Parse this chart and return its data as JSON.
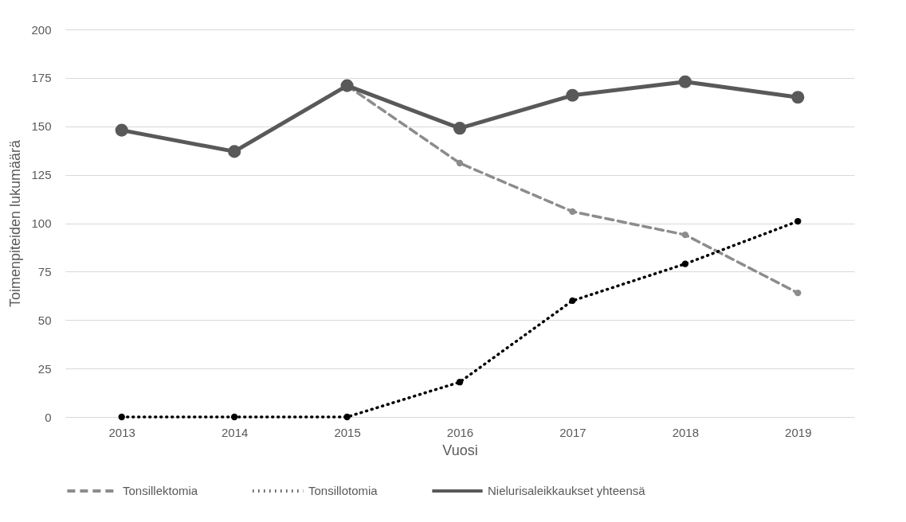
{
  "chart_data": {
    "type": "line",
    "xlabel": "Vuosi",
    "ylabel": "Toimenpiteiden lukumäärä",
    "categories": [
      "2013",
      "2014",
      "2015",
      "2016",
      "2017",
      "2018",
      "2019"
    ],
    "ylim": [
      0,
      200
    ],
    "yticks": [
      0,
      25,
      50,
      75,
      100,
      125,
      150,
      175,
      200
    ],
    "grid": "y",
    "legend": "bottom",
    "marker": "circle",
    "series": [
      {
        "name": "Tonsillektomia",
        "color": "#8c8c8c",
        "line_style": "dashed",
        "values": [
          null,
          null,
          171,
          131,
          106,
          94,
          64
        ]
      },
      {
        "name": "Tonsillotomia",
        "color": "#000000",
        "line_style": "dotted",
        "values": [
          0,
          0,
          0,
          18,
          60,
          79,
          101
        ]
      },
      {
        "name": "Nielurisaleikkaukset yhteensä",
        "color": "#595959",
        "line_style": "solid",
        "values": [
          148,
          137,
          171,
          149,
          166,
          173,
          165
        ]
      }
    ]
  }
}
